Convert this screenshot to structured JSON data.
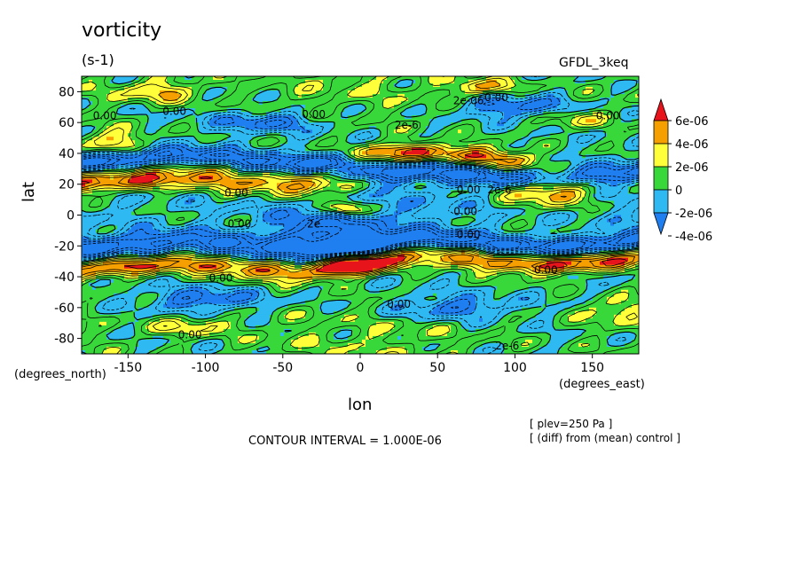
{
  "chart_data": {
    "type": "heatmap",
    "title": "vorticity",
    "units": "(s-1)",
    "dataset": "GFDL_3keq",
    "xlabel": "lon",
    "ylabel": "lat",
    "x_units": "(degrees_east)",
    "y_units": "(degrees_north)",
    "xlim": [
      -180,
      180
    ],
    "ylim": [
      -90,
      90
    ],
    "x_ticks": [
      -150,
      -100,
      -50,
      0,
      50,
      100,
      150
    ],
    "y_ticks": [
      -80,
      -60,
      -40,
      -20,
      0,
      20,
      40,
      60,
      80
    ],
    "contour_interval_text": "CONTOUR INTERVAL = 1.000E-06",
    "annotation_plev": "[ plev=250 Pa ]",
    "annotation_diff": "[ (diff) from (mean) control ]",
    "colorbar": {
      "levels": [
        -6e-06,
        -4e-06,
        -2e-06,
        0,
        2e-06,
        4e-06,
        6e-06,
        8e-06
      ],
      "tick_labels": [
        "6e-06",
        "4e-06",
        "2e-06",
        "0",
        "-2e-06",
        "-4e-06"
      ],
      "colors": [
        "#1f7ff0",
        "#2fb9f2",
        "#38d83a",
        "#ffff3a",
        "#f5a000",
        "#e8141c"
      ]
    },
    "contour_labels": [
      {
        "text": "0.00",
        "lon": -165,
        "lat": 62
      },
      {
        "text": "0.00",
        "lon": -120,
        "lat": 65
      },
      {
        "text": "0.00",
        "lon": -30,
        "lat": 63
      },
      {
        "text": "2e-6",
        "lon": 30,
        "lat": 56
      },
      {
        "text": "2e-06",
        "lon": 70,
        "lat": 72
      },
      {
        "text": "0.00",
        "lon": 88,
        "lat": 74
      },
      {
        "text": "0.00",
        "lon": 160,
        "lat": 62
      },
      {
        "text": "0.00",
        "lon": 70,
        "lat": 14
      },
      {
        "text": "2e-6",
        "lon": 90,
        "lat": 14
      },
      {
        "text": "0.00",
        "lon": 68,
        "lat": 0
      },
      {
        "text": "0.00",
        "lon": -80,
        "lat": 12
      },
      {
        "text": "0.00",
        "lon": -78,
        "lat": -8
      },
      {
        "text": "2e",
        "lon": -30,
        "lat": -8
      },
      {
        "text": "0.00",
        "lon": 70,
        "lat": -15
      },
      {
        "text": "0.00",
        "lon": 120,
        "lat": -38
      },
      {
        "text": "0.00",
        "lon": -90,
        "lat": -43
      },
      {
        "text": "0.00",
        "lon": 25,
        "lat": -60
      },
      {
        "text": "0.00",
        "lon": -110,
        "lat": -80
      },
      {
        "text": "2e-6",
        "lon": 95,
        "lat": -87
      }
    ],
    "features": [
      {
        "kind": "jet",
        "value": 6e-06,
        "lon_range": [
          -180,
          -15
        ],
        "lat": 22,
        "width": 10
      },
      {
        "kind": "jet",
        "value": -5e-06,
        "lon_range": [
          -180,
          -15
        ],
        "lat": 36,
        "width": 8
      },
      {
        "kind": "jet",
        "value": -5e-06,
        "lon_range": [
          -180,
          0
        ],
        "lat": -20,
        "width": 10
      },
      {
        "kind": "jet",
        "value": 6e-06,
        "lon_range": [
          -180,
          0
        ],
        "lat": -34,
        "width": 9
      },
      {
        "kind": "jet",
        "value": 6e-06,
        "lon_range": [
          0,
          180
        ],
        "lat": -30,
        "width": 9
      },
      {
        "kind": "jet",
        "value": -5e-06,
        "lon_range": [
          0,
          180
        ],
        "lat": -18,
        "width": 8
      },
      {
        "kind": "jet",
        "value": 6e-06,
        "lon_range": [
          10,
          95
        ],
        "lat": 38,
        "width": 9
      },
      {
        "kind": "jet",
        "value": -5e-06,
        "lon_range": [
          0,
          180
        ],
        "lat": 26,
        "width": 9
      },
      {
        "kind": "blob",
        "value": 6e-06,
        "lon": 122,
        "lat": 16,
        "rlon": 28,
        "rlat": 10
      },
      {
        "kind": "blob",
        "value": 6e-06,
        "lon": -10,
        "lat": 4,
        "rlon": 14,
        "rlat": 5
      },
      {
        "kind": "blob",
        "value": -4e-06,
        "lon": -20,
        "lat": -8,
        "rlon": 30,
        "rlat": 10
      },
      {
        "kind": "blob",
        "value": 4e-06,
        "lon": -130,
        "lat": 80,
        "rlon": 25,
        "rlat": 7
      },
      {
        "kind": "blob",
        "value": 4e-06,
        "lon": 80,
        "lat": 83,
        "rlon": 20,
        "rlat": 5
      },
      {
        "kind": "blob",
        "value": 4e-06,
        "lon": -160,
        "lat": 48,
        "rlon": 20,
        "rlat": 8
      },
      {
        "kind": "blob",
        "value": -4e-06,
        "lon": -60,
        "lat": 60,
        "rlon": 35,
        "rlat": 7
      },
      {
        "kind": "blob",
        "value": -4e-06,
        "lon": 100,
        "lat": 70,
        "rlon": 35,
        "rlat": 7
      },
      {
        "kind": "blob",
        "value": -4e-06,
        "lon": -100,
        "lat": -55,
        "rlon": 35,
        "rlat": 7
      },
      {
        "kind": "blob",
        "value": -4e-06,
        "lon": 60,
        "lat": -60,
        "rlon": 35,
        "rlat": 7
      },
      {
        "kind": "blob",
        "value": 3e-06,
        "lon": 165,
        "lat": -62,
        "rlon": 20,
        "rlat": 8
      },
      {
        "kind": "blob",
        "value": 3e-06,
        "lon": -110,
        "lat": -72,
        "rlon": 25,
        "rlat": 6
      },
      {
        "kind": "blob",
        "value": 3e-06,
        "lon": 140,
        "lat": 62,
        "rlon": 18,
        "rlat": 6
      }
    ]
  }
}
